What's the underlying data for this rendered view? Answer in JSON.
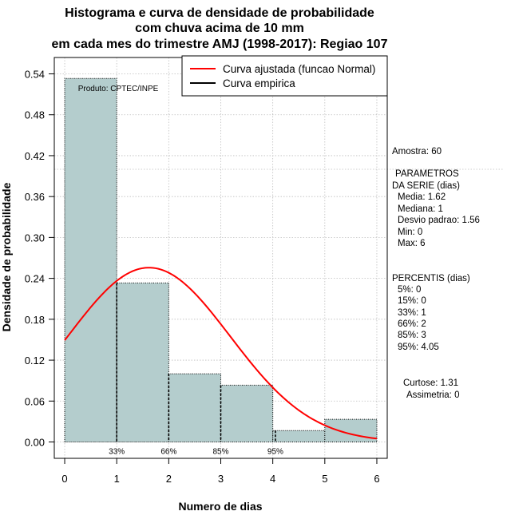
{
  "chart_data": {
    "type": "bar",
    "title_lines": [
      "Histograma e curva de densidade de probabilidade",
      "com chuva acima de 10 mm",
      "em cada mes do trimestre AMJ (1998-2017): Regiao 107"
    ],
    "xlabel": "Numero de dias",
    "ylabel": "Densidade de probabilidade",
    "xlim": [
      -0.2,
      6.2
    ],
    "ylim": [
      -0.024,
      0.564
    ],
    "x_ticks": [
      0,
      1,
      2,
      3,
      4,
      5,
      6
    ],
    "y_ticks": [
      0.0,
      0.06,
      0.12,
      0.18,
      0.24,
      0.3,
      0.36,
      0.42,
      0.48,
      0.54
    ],
    "y_tick_labels": [
      "0.00",
      "0.06",
      "0.12",
      "0.18",
      "0.24",
      "0.30",
      "0.36",
      "0.42",
      "0.48",
      "0.54"
    ],
    "bins": [
      {
        "from": 0,
        "to": 1,
        "density": 0.5333
      },
      {
        "from": 1,
        "to": 2,
        "density": 0.2333
      },
      {
        "from": 2,
        "to": 3,
        "density": 0.1
      },
      {
        "from": 3,
        "to": 4,
        "density": 0.0833
      },
      {
        "from": 4,
        "to": 5,
        "density": 0.0167
      },
      {
        "from": 5,
        "to": 6,
        "density": 0.0333
      }
    ],
    "normal_fit": {
      "mean": 1.62,
      "sd": 1.56
    },
    "percentile_lines": [
      {
        "x": 1,
        "label": "33%"
      },
      {
        "x": 2,
        "label": "66%"
      },
      {
        "x": 3,
        "label": "85%"
      },
      {
        "x": 4.05,
        "label": "95%"
      }
    ],
    "reference_line_y": 0.4,
    "grid": true,
    "legend": {
      "position": "top-right",
      "entries": [
        {
          "label": "Curva ajustada (funcao Normal)",
          "color": "#ff0000"
        },
        {
          "label": "Curva empirica",
          "color": "#000000"
        }
      ]
    },
    "product_label": "Produto: CPTEC/INPE",
    "colors": {
      "bar_fill": "#b4cdcd",
      "curve": "#ff0000",
      "grid": "#bebebe"
    }
  },
  "side_panel": {
    "sample": "Amostra: 60",
    "params_title_1": "PARAMETROS",
    "params_title_2": "DA SERIE (dias)",
    "params": [
      "Media: 1.62",
      "Mediana: 1",
      "Desvio padrao: 1.56",
      "Min: 0",
      "Max: 6"
    ],
    "perc_title": "PERCENTIS (dias)",
    "percentis": [
      "5%: 0",
      "15%: 0",
      "33%: 1",
      "66%: 2",
      "85%: 3",
      "95%: 4.05"
    ],
    "curtose": "Curtose: 1.31",
    "assimetria": "Assimetria: 0"
  }
}
